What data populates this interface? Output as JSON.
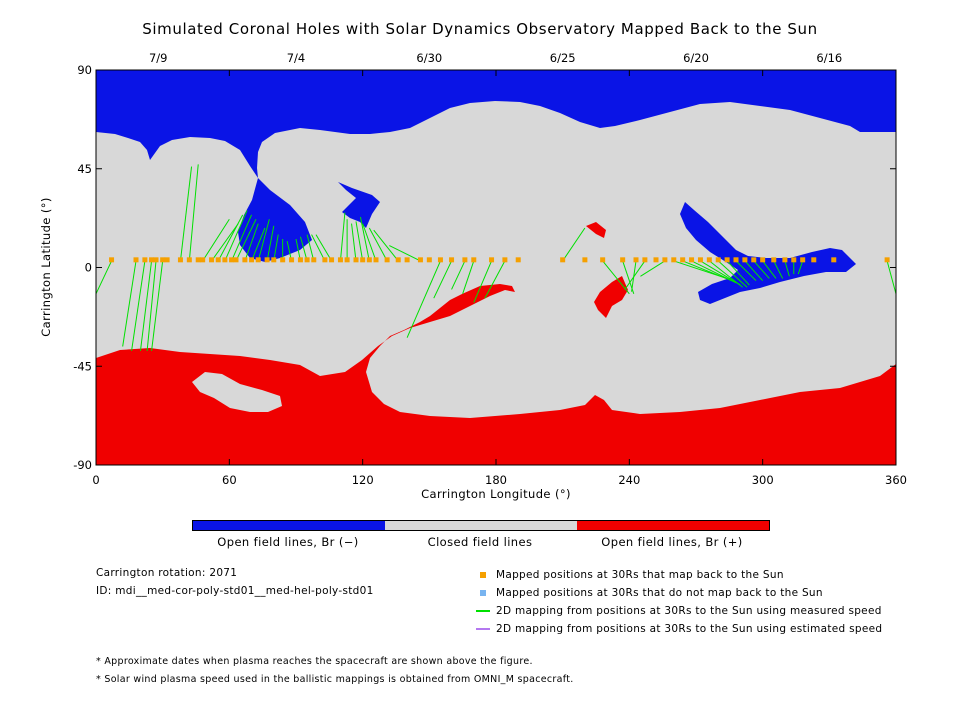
{
  "chart_data": {
    "type": "map",
    "title": "Simulated Coronal Holes with Solar Dynamics Observatory Mapped Back to the Sun",
    "xlabel": "Carrington Longitude (°)",
    "ylabel": "Carrington Latitude (°)",
    "xlim": [
      0,
      360
    ],
    "ylim": [
      -90,
      90
    ],
    "x_ticks": [
      "0",
      "60",
      "120",
      "180",
      "240",
      "300",
      "360"
    ],
    "y_ticks": [
      "90",
      "45",
      "0",
      "-45",
      "-90"
    ],
    "date_ticks": [
      {
        "date": "7/9",
        "lon": 28
      },
      {
        "date": "7/4",
        "lon": 90
      },
      {
        "date": "6/30",
        "lon": 150
      },
      {
        "date": "6/25",
        "lon": 210
      },
      {
        "date": "6/20",
        "lon": 270
      },
      {
        "date": "6/16",
        "lon": 330
      }
    ],
    "region_colors": {
      "open_negative": "#0a14e6",
      "closed": "#d8d8d8",
      "open_positive": "#f00000"
    },
    "mapped_positions_lon": [
      7,
      18,
      22,
      25,
      27,
      30,
      32,
      38,
      42,
      46,
      48,
      52,
      55,
      58,
      61,
      63,
      67,
      70,
      73,
      77,
      80,
      84,
      88,
      92,
      95,
      98,
      103,
      106,
      110,
      113,
      117,
      120,
      123,
      126,
      131,
      136,
      140,
      146,
      150,
      155,
      160,
      166,
      170,
      178,
      184,
      190,
      210,
      220,
      228,
      237,
      243,
      247,
      252,
      256,
      260,
      264,
      268,
      272,
      276,
      280,
      284,
      288,
      292,
      296,
      300,
      305,
      310,
      314,
      318,
      323,
      332,
      356
    ],
    "mapped_positions_lat": 3.5,
    "mapping_lines": [
      [
        7,
        3,
        0,
        -12
      ],
      [
        18,
        3,
        12,
        -36
      ],
      [
        22,
        3,
        16,
        -38
      ],
      [
        25,
        3,
        20,
        -38
      ],
      [
        27,
        3,
        23,
        -38
      ],
      [
        30,
        3,
        25,
        -38
      ],
      [
        38,
        3,
        43,
        46
      ],
      [
        42,
        3,
        46,
        47
      ],
      [
        48,
        3,
        60,
        22
      ],
      [
        52,
        3,
        64,
        20
      ],
      [
        55,
        3,
        66,
        24
      ],
      [
        58,
        3,
        68,
        26
      ],
      [
        61,
        3,
        70,
        24
      ],
      [
        63,
        3,
        72,
        22
      ],
      [
        67,
        3,
        73,
        20
      ],
      [
        70,
        3,
        76,
        18
      ],
      [
        73,
        3,
        78,
        22
      ],
      [
        77,
        3,
        80,
        19
      ],
      [
        80,
        3,
        82,
        15
      ],
      [
        84,
        3,
        84,
        13
      ],
      [
        88,
        3,
        86,
        12
      ],
      [
        92,
        3,
        90,
        13
      ],
      [
        95,
        3,
        92,
        14
      ],
      [
        98,
        3,
        95,
        15
      ],
      [
        103,
        3,
        97,
        15
      ],
      [
        106,
        3,
        99,
        15
      ],
      [
        110,
        3,
        112,
        25
      ],
      [
        113,
        3,
        113,
        22
      ],
      [
        117,
        3,
        115,
        20
      ],
      [
        120,
        3,
        117,
        21
      ],
      [
        123,
        3,
        119,
        23
      ],
      [
        126,
        3,
        120,
        20
      ],
      [
        131,
        3,
        123,
        18
      ],
      [
        136,
        3,
        125,
        17
      ],
      [
        146,
        3,
        132,
        10
      ],
      [
        155,
        3,
        140,
        -32
      ],
      [
        160,
        3,
        152,
        -14
      ],
      [
        166,
        3,
        160,
        -10
      ],
      [
        170,
        3,
        165,
        -12
      ],
      [
        178,
        3,
        170,
        -16
      ],
      [
        184,
        3,
        175,
        -14
      ],
      [
        210,
        3,
        220,
        18
      ],
      [
        228,
        3,
        240,
        -12
      ],
      [
        237,
        3,
        242,
        -12
      ],
      [
        243,
        3,
        241,
        -11
      ],
      [
        247,
        3,
        238,
        -10
      ],
      [
        256,
        3,
        245,
        -4
      ],
      [
        260,
        3,
        284,
        -5
      ],
      [
        264,
        3,
        286,
        -6
      ],
      [
        268,
        3,
        288,
        -7
      ],
      [
        272,
        3,
        290,
        -8
      ],
      [
        276,
        3,
        291,
        -9
      ],
      [
        280,
        3,
        293,
        -9
      ],
      [
        284,
        3,
        294,
        -8
      ],
      [
        288,
        3,
        297,
        -6
      ],
      [
        292,
        3,
        300,
        -6
      ],
      [
        296,
        3,
        303,
        -5
      ],
      [
        300,
        3,
        306,
        -5
      ],
      [
        305,
        3,
        309,
        -5
      ],
      [
        310,
        3,
        312,
        -4
      ],
      [
        314,
        3,
        314,
        -3
      ],
      [
        318,
        3,
        316,
        -3
      ],
      [
        356,
        3,
        360,
        -12
      ]
    ],
    "colorbar": [
      {
        "label": "Open field lines, Br (−)",
        "color": "#0a14e6"
      },
      {
        "label": "Closed field lines",
        "color": "#d8d8d8"
      },
      {
        "label": "Open field lines, Br (+)",
        "color": "#f00000"
      }
    ]
  },
  "info": {
    "rotation": "Carrington rotation: 2071",
    "id": "ID: mdi__med-cor-poly-std01__med-hel-poly-std01"
  },
  "legend": [
    {
      "label": "Mapped positions at 30Rs that map back to the Sun",
      "color": "#f5a000",
      "kind": "square"
    },
    {
      "label": "Mapped positions at 30Rs that do not map back to the Sun",
      "color": "#78b4f0",
      "kind": "square"
    },
    {
      "label": "2D mapping from positions at 30Rs to the Sun using measured speed",
      "color": "#00e000",
      "kind": "line"
    },
    {
      "label": "2D mapping from positions at 30Rs to the Sun using estimated speed",
      "color": "#b478f0",
      "kind": "line"
    }
  ],
  "notes": [
    "* Approximate dates when plasma reaches the spacecraft are shown above the figure.",
    "* Solar wind plasma speed used in the ballistic mappings is obtained from OMNI_M spacecraft."
  ]
}
